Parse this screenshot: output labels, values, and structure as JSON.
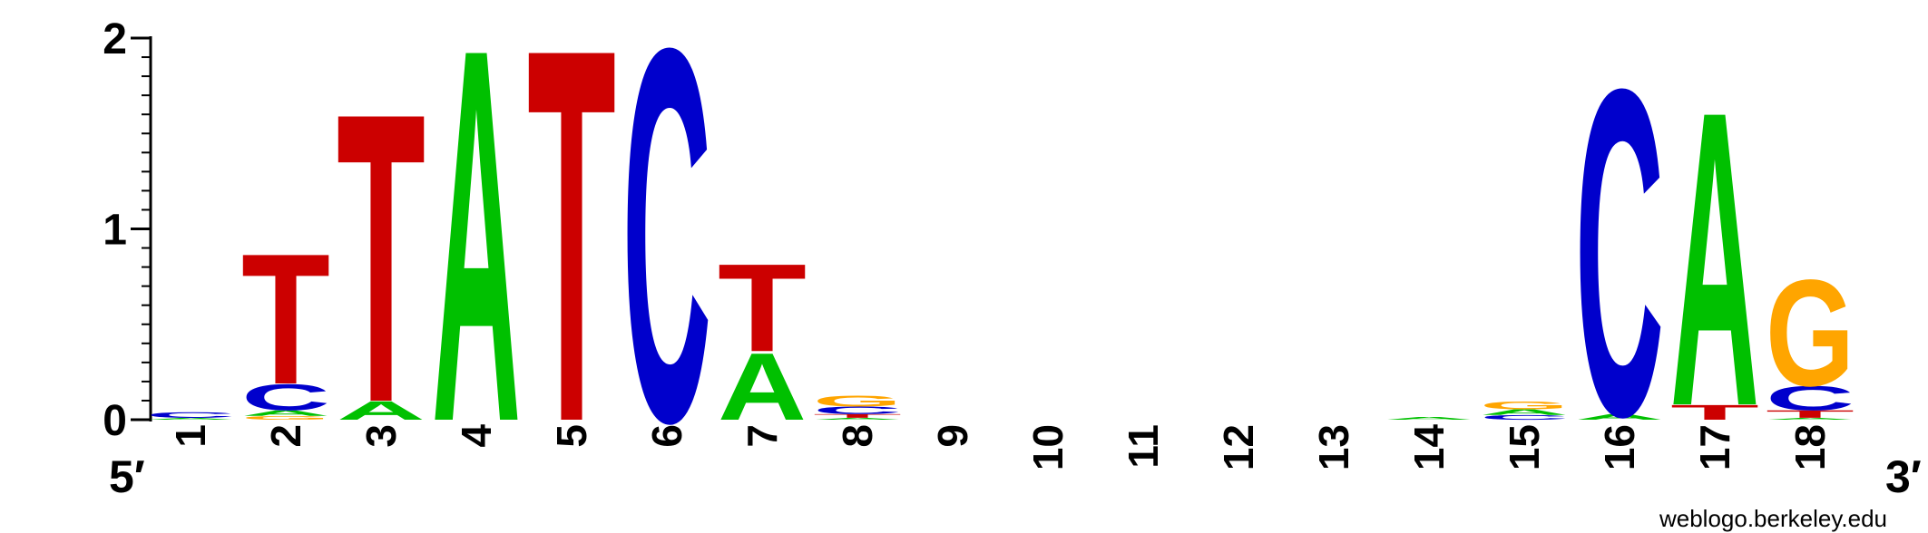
{
  "chart_data": {
    "type": "sequence-logo",
    "ylim": [
      0,
      2
    ],
    "yticks": [
      "0",
      "1",
      "2"
    ],
    "end_labels": {
      "left": "5′",
      "right": "3′"
    },
    "credit": "weblogo.berkeley.edu",
    "colors": {
      "A": "#00c000",
      "C": "#0000cc",
      "G": "#ffa500",
      "T": "#cc0000"
    },
    "positions": [
      {
        "label": "1",
        "letters": [
          {
            "base": "A",
            "bits": 0.01
          },
          {
            "base": "C",
            "bits": 0.03
          }
        ]
      },
      {
        "label": "2",
        "letters": [
          {
            "base": "G",
            "bits": 0.02
          },
          {
            "base": "A",
            "bits": 0.03
          },
          {
            "base": "C",
            "bits": 0.14
          },
          {
            "base": "T",
            "bits": 0.7
          }
        ]
      },
      {
        "label": "3",
        "letters": [
          {
            "base": "A",
            "bits": 0.1
          },
          {
            "base": "T",
            "bits": 1.55
          }
        ]
      },
      {
        "label": "4",
        "letters": [
          {
            "base": "A",
            "bits": 2.0
          }
        ]
      },
      {
        "label": "5",
        "letters": [
          {
            "base": "T",
            "bits": 2.0
          }
        ]
      },
      {
        "label": "6",
        "letters": [
          {
            "base": "C",
            "bits": 2.0
          }
        ]
      },
      {
        "label": "7",
        "letters": [
          {
            "base": "A",
            "bits": 0.36
          },
          {
            "base": "T",
            "bits": 0.47
          }
        ]
      },
      {
        "label": "8",
        "letters": [
          {
            "base": "A",
            "bits": 0.01
          },
          {
            "base": "T",
            "bits": 0.02
          },
          {
            "base": "C",
            "bits": 0.04
          },
          {
            "base": "G",
            "bits": 0.06
          }
        ]
      },
      {
        "label": "9",
        "letters": []
      },
      {
        "label": "10",
        "letters": []
      },
      {
        "label": "11",
        "letters": []
      },
      {
        "label": "12",
        "letters": []
      },
      {
        "label": "13",
        "letters": []
      },
      {
        "label": "14",
        "letters": [
          {
            "base": "A",
            "bits": 0.015
          }
        ]
      },
      {
        "label": "15",
        "letters": [
          {
            "base": "C",
            "bits": 0.025
          },
          {
            "base": "A",
            "bits": 0.03
          },
          {
            "base": "G",
            "bits": 0.04
          }
        ]
      },
      {
        "label": "16",
        "letters": [
          {
            "base": "A",
            "bits": 0.03
          },
          {
            "base": "C",
            "bits": 1.75
          }
        ]
      },
      {
        "label": "17",
        "letters": [
          {
            "base": "T",
            "bits": 0.08
          },
          {
            "base": "A",
            "bits": 1.58
          }
        ]
      },
      {
        "label": "18",
        "letters": [
          {
            "base": "A",
            "bits": 0.01
          },
          {
            "base": "T",
            "bits": 0.04
          },
          {
            "base": "C",
            "bits": 0.13
          },
          {
            "base": "G",
            "bits": 0.57
          }
        ]
      }
    ]
  }
}
